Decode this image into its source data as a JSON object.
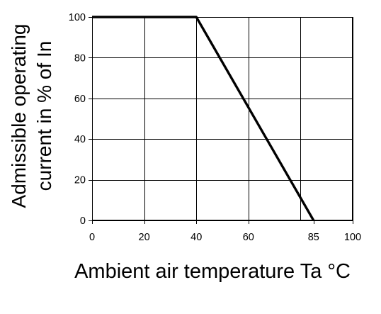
{
  "chart_data": {
    "type": "line",
    "title": "",
    "xlabel": "Ambient air temperature Ta °C",
    "ylabel_lines": [
      "Admissible operating",
      "current in % of In"
    ],
    "xlim": [
      0,
      100
    ],
    "ylim": [
      0,
      100
    ],
    "x_ticks": [
      0,
      20,
      40,
      60,
      85,
      100
    ],
    "x_gridlines": [
      0,
      20,
      40,
      60,
      80,
      100
    ],
    "y_ticks": [
      0,
      20,
      40,
      60,
      80,
      100
    ],
    "grid": true,
    "legend": "none",
    "series": [
      {
        "color": "#000000",
        "points": [
          {
            "x": 0,
            "y": 100
          },
          {
            "x": 40,
            "y": 100
          },
          {
            "x": 85,
            "y": 0
          }
        ]
      }
    ]
  }
}
